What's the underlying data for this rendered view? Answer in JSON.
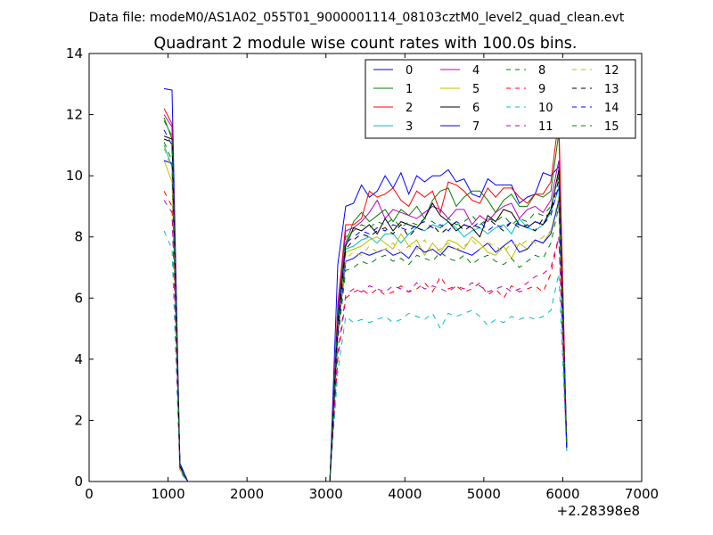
{
  "page": {
    "suptitle": "Data file: modeM0/AS1A02_055T01_9000001114_08103cztM0_level2_quad_clean.evt"
  },
  "chart_data": {
    "type": "line",
    "title": "Quadrant 2 module wise count rates with 100.0s bins.",
    "xlabel": "",
    "ylabel": "",
    "x_offset_label": "+2.28398e8",
    "xlim": [
      0,
      7000
    ],
    "ylim": [
      0,
      14
    ],
    "xticks": [
      0,
      1000,
      2000,
      3000,
      4000,
      5000,
      6000,
      7000
    ],
    "yticks": [
      0,
      2,
      4,
      6,
      8,
      10,
      12,
      14
    ],
    "grid": false,
    "legend": {
      "placement": "top-right",
      "columns": 4
    },
    "x_units_note": "x values are offsets added to +2.28398e8",
    "x": [
      950,
      1050,
      1150,
      1250,
      1350,
      3050,
      3150,
      3250,
      3350,
      3450,
      3550,
      3650,
      3750,
      3850,
      3950,
      4050,
      4150,
      4250,
      4350,
      4450,
      4550,
      4650,
      4750,
      4850,
      4950,
      5050,
      5150,
      5250,
      5350,
      5450,
      5550,
      5650,
      5750,
      5850,
      5950,
      6050
    ],
    "series": [
      {
        "name": "0",
        "color": "#0000ff",
        "dash": "solid",
        "values": [
          12.85,
          12.8,
          0.6,
          0.0,
          0.0,
          0.0,
          7.1,
          9.0,
          9.1,
          9.7,
          9.3,
          9.5,
          10.0,
          9.6,
          10.1,
          9.4,
          10.0,
          9.8,
          10.0,
          10.0,
          10.2,
          9.8,
          9.9,
          9.4,
          9.3,
          9.9,
          9.7,
          9.7,
          9.7,
          9.1,
          9.3,
          9.4,
          10.1,
          10.0,
          10.3,
          1.1
        ]
      },
      {
        "name": "1",
        "color": "#008000",
        "dash": "solid",
        "values": [
          11.9,
          11.2,
          0.5,
          0.0,
          0.0,
          0.0,
          5.6,
          7.8,
          8.5,
          8.8,
          8.5,
          8.7,
          8.9,
          8.5,
          8.9,
          8.7,
          9.0,
          8.6,
          9.2,
          9.5,
          9.6,
          9.0,
          9.3,
          9.5,
          9.5,
          9.2,
          8.8,
          9.2,
          9.4,
          9.0,
          9.0,
          9.4,
          9.3,
          9.5,
          11.4,
          1.1
        ]
      },
      {
        "name": "2",
        "color": "#ff0000",
        "dash": "solid",
        "values": [
          12.2,
          11.7,
          0.5,
          0.0,
          0.0,
          0.0,
          5.8,
          8.4,
          8.4,
          8.6,
          9.5,
          9.3,
          9.4,
          9.6,
          9.2,
          9.0,
          9.5,
          9.3,
          9.5,
          8.8,
          9.8,
          9.7,
          9.5,
          9.2,
          9.1,
          9.6,
          9.3,
          9.6,
          9.6,
          9.3,
          9.1,
          9.4,
          9.4,
          9.8,
          11.9,
          1.1
        ]
      },
      {
        "name": "3",
        "color": "#00bfbf",
        "dash": "solid",
        "values": [
          11.0,
          10.3,
          0.4,
          0.0,
          0.0,
          0.0,
          5.0,
          7.6,
          7.7,
          7.9,
          8.0,
          7.8,
          8.1,
          8.1,
          7.8,
          8.1,
          8.3,
          8.2,
          8.4,
          8.3,
          8.5,
          8.3,
          8.0,
          8.2,
          8.3,
          8.1,
          8.3,
          8.4,
          8.1,
          8.6,
          8.3,
          8.2,
          8.4,
          8.8,
          9.6,
          1.1
        ]
      },
      {
        "name": "4",
        "color": "#bf00bf",
        "dash": "solid",
        "values": [
          12.0,
          11.6,
          0.5,
          0.0,
          0.0,
          0.0,
          5.6,
          8.2,
          8.3,
          8.5,
          8.8,
          9.2,
          8.6,
          8.9,
          8.8,
          8.7,
          8.6,
          8.8,
          9.0,
          8.9,
          8.6,
          8.9,
          8.9,
          8.4,
          8.7,
          8.5,
          8.8,
          9.0,
          9.1,
          8.6,
          8.9,
          9.0,
          8.8,
          9.2,
          10.5,
          1.1
        ]
      },
      {
        "name": "5",
        "color": "#bfbf00",
        "dash": "solid",
        "values": [
          10.5,
          9.8,
          0.4,
          0.0,
          0.0,
          0.0,
          4.8,
          7.5,
          7.6,
          7.7,
          7.9,
          8.0,
          7.8,
          7.6,
          8.1,
          7.7,
          7.9,
          7.4,
          7.8,
          7.5,
          7.9,
          7.8,
          7.6,
          8.0,
          7.8,
          7.5,
          7.4,
          7.7,
          7.3,
          7.8,
          7.6,
          7.9,
          7.8,
          8.2,
          9.1,
          1.1
        ]
      },
      {
        "name": "6",
        "color": "#000000",
        "dash": "solid",
        "values": [
          11.3,
          11.2,
          0.5,
          0.0,
          0.0,
          0.0,
          5.3,
          7.7,
          8.3,
          8.2,
          8.4,
          8.1,
          8.6,
          8.2,
          8.5,
          8.4,
          8.3,
          8.6,
          9.1,
          8.7,
          8.5,
          8.2,
          8.4,
          8.3,
          8.0,
          8.7,
          8.5,
          8.9,
          8.8,
          8.4,
          8.3,
          8.5,
          8.4,
          8.9,
          10.2,
          1.1
        ]
      },
      {
        "name": "7",
        "color": "#0000ff",
        "dash": "solid",
        "values": [
          10.5,
          10.4,
          0.4,
          0.0,
          0.0,
          0.0,
          4.8,
          7.2,
          7.3,
          7.5,
          7.4,
          7.5,
          7.6,
          7.4,
          7.5,
          7.3,
          7.7,
          7.5,
          7.6,
          7.4,
          7.7,
          7.6,
          7.5,
          7.4,
          7.6,
          7.8,
          7.5,
          7.7,
          7.9,
          7.5,
          7.6,
          7.9,
          7.8,
          8.1,
          9.2,
          1.1
        ]
      },
      {
        "name": "8",
        "color": "#008000",
        "dash": "dashed",
        "values": [
          11.1,
          10.5,
          0.4,
          0.0,
          0.0,
          0.0,
          4.6,
          6.9,
          7.0,
          7.2,
          7.1,
          7.3,
          7.4,
          7.2,
          7.3,
          7.1,
          7.4,
          7.3,
          7.2,
          7.5,
          7.3,
          7.2,
          7.4,
          7.1,
          7.3,
          7.4,
          7.2,
          7.1,
          7.3,
          7.0,
          7.2,
          7.4,
          7.3,
          7.8,
          9.0,
          1.1
        ]
      },
      {
        "name": "9",
        "color": "#ff0000",
        "dash": "dashed",
        "values": [
          9.5,
          9.0,
          0.4,
          0.0,
          0.0,
          0.0,
          4.0,
          6.0,
          6.2,
          6.3,
          6.1,
          6.3,
          6.1,
          6.2,
          6.4,
          6.2,
          6.3,
          6.5,
          6.2,
          6.7,
          6.3,
          6.4,
          6.2,
          6.3,
          6.5,
          6.1,
          6.3,
          6.0,
          6.4,
          6.2,
          6.3,
          6.4,
          6.2,
          6.8,
          8.0,
          1.0
        ]
      },
      {
        "name": "10",
        "color": "#00bfbf",
        "dash": "dashed",
        "values": [
          8.2,
          7.6,
          0.3,
          0.0,
          0.0,
          0.0,
          3.6,
          5.4,
          5.2,
          5.3,
          5.2,
          5.3,
          5.4,
          5.2,
          5.3,
          5.5,
          5.4,
          5.3,
          5.5,
          5.0,
          5.5,
          5.4,
          5.5,
          5.6,
          5.4,
          5.1,
          5.3,
          5.2,
          5.4,
          5.3,
          5.4,
          5.3,
          5.4,
          5.6,
          6.8,
          1.0
        ]
      },
      {
        "name": "11",
        "color": "#bf00bf",
        "dash": "dashed",
        "values": [
          9.2,
          8.8,
          0.4,
          0.0,
          0.0,
          0.0,
          4.2,
          6.1,
          6.3,
          6.2,
          6.4,
          6.3,
          6.2,
          6.4,
          6.3,
          6.2,
          6.5,
          6.3,
          6.4,
          6.3,
          6.2,
          6.4,
          6.3,
          6.5,
          6.4,
          6.2,
          6.3,
          6.4,
          6.2,
          6.3,
          6.5,
          6.7,
          6.8,
          7.0,
          8.0,
          1.0
        ]
      },
      {
        "name": "12",
        "color": "#bfbf00",
        "dash": "dashed",
        "values": [
          10.9,
          10.2,
          0.4,
          0.0,
          0.0,
          0.0,
          4.9,
          7.3,
          7.5,
          7.4,
          7.7,
          7.5,
          7.6,
          7.8,
          7.5,
          7.7,
          7.6,
          7.9,
          7.5,
          7.6,
          7.8,
          7.6,
          7.7,
          7.9,
          7.6,
          7.8,
          7.7,
          7.5,
          7.8,
          7.7,
          7.9,
          7.8,
          8.0,
          8.2,
          9.3,
          1.1
        ]
      },
      {
        "name": "13",
        "color": "#000000",
        "dash": "dashed",
        "values": [
          11.2,
          11.1,
          0.5,
          0.0,
          0.0,
          0.0,
          5.0,
          7.6,
          7.9,
          8.1,
          8.0,
          8.2,
          8.3,
          8.1,
          8.4,
          8.0,
          8.3,
          8.2,
          8.4,
          8.1,
          8.3,
          8.5,
          8.2,
          8.4,
          8.3,
          8.6,
          8.4,
          8.2,
          8.5,
          8.3,
          8.4,
          8.2,
          8.6,
          8.8,
          9.9,
          1.1
        ]
      },
      {
        "name": "14",
        "color": "#0000ff",
        "dash": "dashed",
        "values": [
          11.5,
          11.0,
          0.5,
          0.0,
          0.0,
          0.0,
          5.2,
          7.8,
          8.0,
          8.2,
          8.1,
          8.3,
          8.2,
          8.4,
          8.3,
          8.2,
          8.4,
          8.5,
          8.3,
          8.4,
          8.2,
          8.5,
          8.4,
          8.3,
          8.5,
          8.2,
          8.4,
          8.3,
          8.5,
          8.4,
          8.3,
          8.5,
          8.4,
          8.7,
          9.7,
          1.1
        ]
      },
      {
        "name": "15",
        "color": "#008000",
        "dash": "dashed",
        "values": [
          11.8,
          11.3,
          0.5,
          0.0,
          0.0,
          0.0,
          5.4,
          8.0,
          8.2,
          8.4,
          8.3,
          8.5,
          8.4,
          8.6,
          8.3,
          8.5,
          8.4,
          8.6,
          8.5,
          8.3,
          8.6,
          8.4,
          8.5,
          8.7,
          8.4,
          8.6,
          8.5,
          8.7,
          8.4,
          8.6,
          8.5,
          8.8,
          8.7,
          9.0,
          10.0,
          1.1
        ]
      }
    ]
  }
}
